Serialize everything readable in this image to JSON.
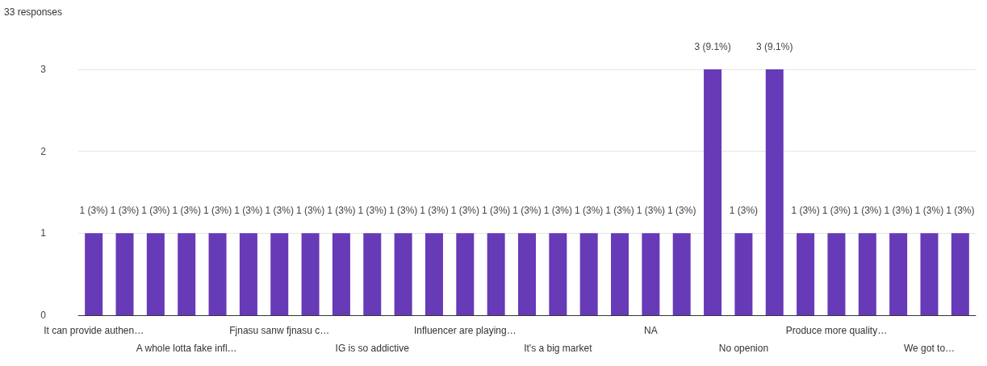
{
  "chart_data": {
    "type": "bar",
    "subtitle": "33 responses",
    "categories": [
      "It can provide authen…",
      null,
      null,
      "A whole lotta fake infl…",
      null,
      null,
      "Fjnasu sanw fjnasu c…",
      null,
      null,
      "IG is so addictive",
      null,
      null,
      "Influencer are playing…",
      null,
      null,
      "It's a big market",
      null,
      null,
      "NA",
      null,
      null,
      "No openion",
      null,
      null,
      "Produce more quality…",
      null,
      null,
      "We got to…",
      null
    ],
    "values": [
      1,
      1,
      1,
      1,
      1,
      1,
      1,
      1,
      1,
      1,
      1,
      1,
      1,
      1,
      1,
      1,
      1,
      1,
      1,
      1,
      3,
      1,
      3,
      1,
      1,
      1,
      1,
      1,
      1
    ],
    "value_labels": [
      "1 (3%)",
      "1 (3%)",
      "1 (3%)",
      "1 (3%)",
      "1 (3%)",
      "1 (3%)",
      "1 (3%)",
      "1 (3%)",
      "1 (3%)",
      "1 (3%)",
      "1 (3%)",
      "1 (3%)",
      "1 (3%)",
      "1 (3%)",
      "1 (3%)",
      "1 (3%)",
      "1 (3%)",
      "1 (3%)",
      "1 (3%)",
      "1 (3%)",
      "3 (9.1%)",
      "1 (3%)",
      "3 (9.1%)",
      "1 (3%)",
      "1 (3%)",
      "1 (3%)",
      "1 (3%)",
      "1 (3%)",
      "1 (3%)"
    ],
    "color": "#673ab7",
    "ylim": [
      0,
      3
    ],
    "yticks": [
      0,
      1,
      2,
      3
    ],
    "grid": "y"
  }
}
